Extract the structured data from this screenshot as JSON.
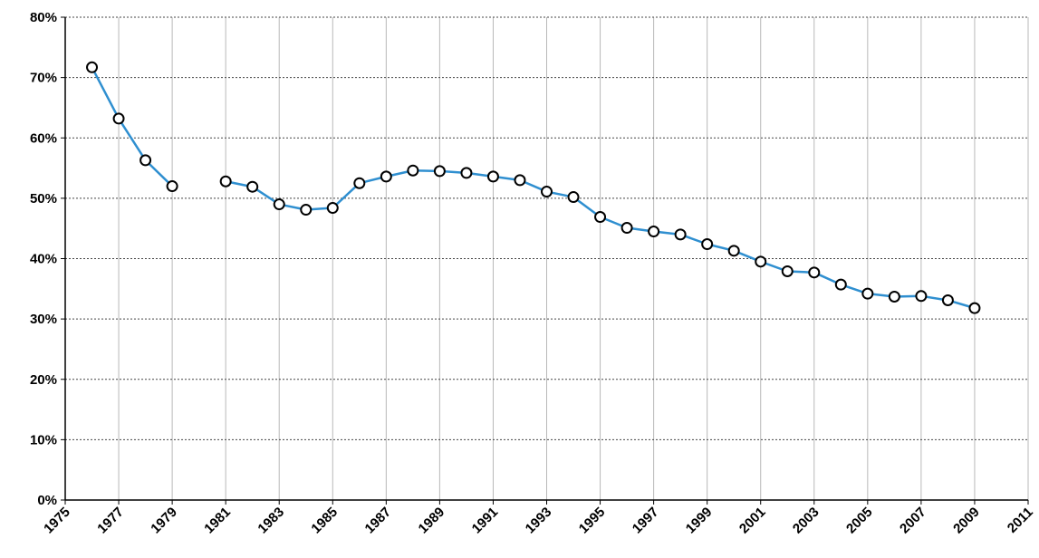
{
  "chart_data": {
    "type": "line",
    "title": "",
    "xlabel": "",
    "ylabel": "",
    "xlim": [
      1975,
      2011
    ],
    "ylim": [
      0,
      80
    ],
    "x_ticks": [
      "1975",
      "1977",
      "1979",
      "1981",
      "1983",
      "1985",
      "1987",
      "1989",
      "1991",
      "1993",
      "1995",
      "1997",
      "1999",
      "2001",
      "2003",
      "2005",
      "2007",
      "2009",
      "2011"
    ],
    "y_ticks": [
      "0%",
      "10%",
      "20%",
      "30%",
      "40%",
      "50%",
      "60%",
      "70%",
      "80%"
    ],
    "grid": true,
    "legend": "none",
    "colors": {
      "line": "#2f8fd0",
      "marker_fill": "#ffffff",
      "marker_edge": "#000000"
    },
    "series": [
      {
        "x": [
          1976,
          1977,
          1978,
          1979,
          1980,
          1981,
          1982,
          1983,
          1984,
          1985,
          1986,
          1987,
          1988,
          1989,
          1990,
          1991,
          1992,
          1993,
          1994,
          1995,
          1996,
          1997,
          1998,
          1999,
          2000,
          2001,
          2002,
          2003,
          2004,
          2005,
          2006,
          2007,
          2008,
          2009
        ],
        "y": [
          71.7,
          63.2,
          56.3,
          52.0,
          null,
          52.8,
          51.9,
          49.0,
          48.1,
          48.4,
          52.5,
          53.6,
          54.6,
          54.5,
          54.2,
          53.6,
          53.0,
          51.1,
          50.2,
          46.9,
          45.1,
          44.5,
          44.0,
          42.4,
          41.3,
          39.5,
          37.9,
          37.7,
          35.7,
          34.2,
          33.7,
          33.8,
          33.1,
          31.8
        ]
      }
    ]
  }
}
